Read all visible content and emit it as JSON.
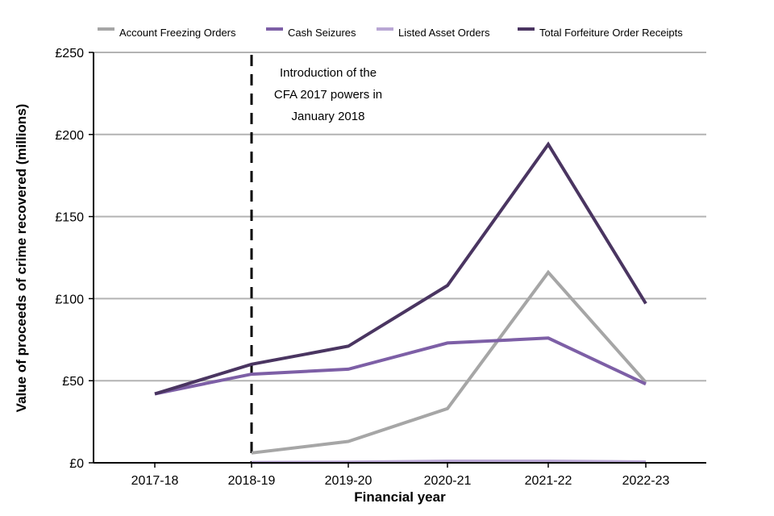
{
  "chart_data": {
    "type": "line",
    "categories": [
      "2017-18",
      "2018-19",
      "2019-20",
      "2020-21",
      "2021-22",
      "2022-23"
    ],
    "series": [
      {
        "name": "Account Freezing Orders",
        "color": "#a6a6a6",
        "values": [
          null,
          6,
          13,
          33,
          116,
          49
        ]
      },
      {
        "name": "Cash Seizures",
        "color": "#7d5fa6",
        "values": [
          42,
          54,
          57,
          73,
          76,
          48
        ]
      },
      {
        "name": "Listed Asset Orders",
        "color": "#b9a7d4",
        "values": [
          null,
          0.2,
          0.4,
          1,
          1,
          0.5
        ]
      },
      {
        "name": "Total Forfeiture Order Receipts",
        "color": "#4a3561",
        "values": [
          42,
          60,
          71,
          108,
          194,
          97
        ]
      }
    ],
    "xlabel": "Financial year",
    "ylabel": "Value of proceeds of crime recovered (millions)",
    "ylim": [
      0,
      250
    ],
    "yticks": [
      0,
      50,
      100,
      150,
      200,
      250
    ],
    "ytick_labels": [
      "£0",
      "£50",
      "£100",
      "£150",
      "£200",
      "£250"
    ],
    "grid": true,
    "legend_position": "top",
    "annotation": {
      "category": "2018-19",
      "lines": [
        "Introduction of the",
        "CFA 2017 powers in",
        "January 2018"
      ]
    }
  }
}
